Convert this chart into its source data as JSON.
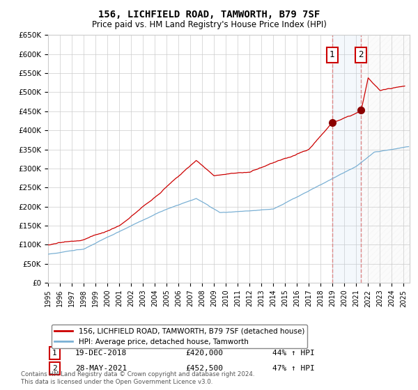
{
  "title": "156, LICHFIELD ROAD, TAMWORTH, B79 7SF",
  "subtitle": "Price paid vs. HM Land Registry's House Price Index (HPI)",
  "ylabel_ticks": [
    "£0",
    "£50K",
    "£100K",
    "£150K",
    "£200K",
    "£250K",
    "£300K",
    "£350K",
    "£400K",
    "£450K",
    "£500K",
    "£550K",
    "£600K",
    "£650K"
  ],
  "ytick_values": [
    0,
    50000,
    100000,
    150000,
    200000,
    250000,
    300000,
    350000,
    400000,
    450000,
    500000,
    550000,
    600000,
    650000
  ],
  "xlim_start": 1995.0,
  "xlim_end": 2025.5,
  "ylim_min": 0,
  "ylim_max": 650000,
  "legend_line1": "156, LICHFIELD ROAD, TAMWORTH, B79 7SF (detached house)",
  "legend_line2": "HPI: Average price, detached house, Tamworth",
  "sale1_label": "1",
  "sale1_date": "19-DEC-2018",
  "sale1_price": "£420,000",
  "sale1_hpi": "44% ↑ HPI",
  "sale1_year": 2018.96,
  "sale1_value": 420000,
  "sale2_label": "2",
  "sale2_date": "28-MAY-2021",
  "sale2_price": "£452,500",
  "sale2_hpi": "47% ↑ HPI",
  "sale2_year": 2021.4,
  "sale2_value": 452500,
  "footer": "Contains HM Land Registry data © Crown copyright and database right 2024.\nThis data is licensed under the Open Government Licence v3.0.",
  "property_color": "#cc0000",
  "hpi_color": "#7ab0d4",
  "background_color": "#ffffff",
  "plot_bg_color": "#ffffff",
  "grid_color": "#cccccc",
  "vline_color": "#dd8888",
  "span_color": "#ddeeff",
  "box_edge_color": "#cc0000"
}
